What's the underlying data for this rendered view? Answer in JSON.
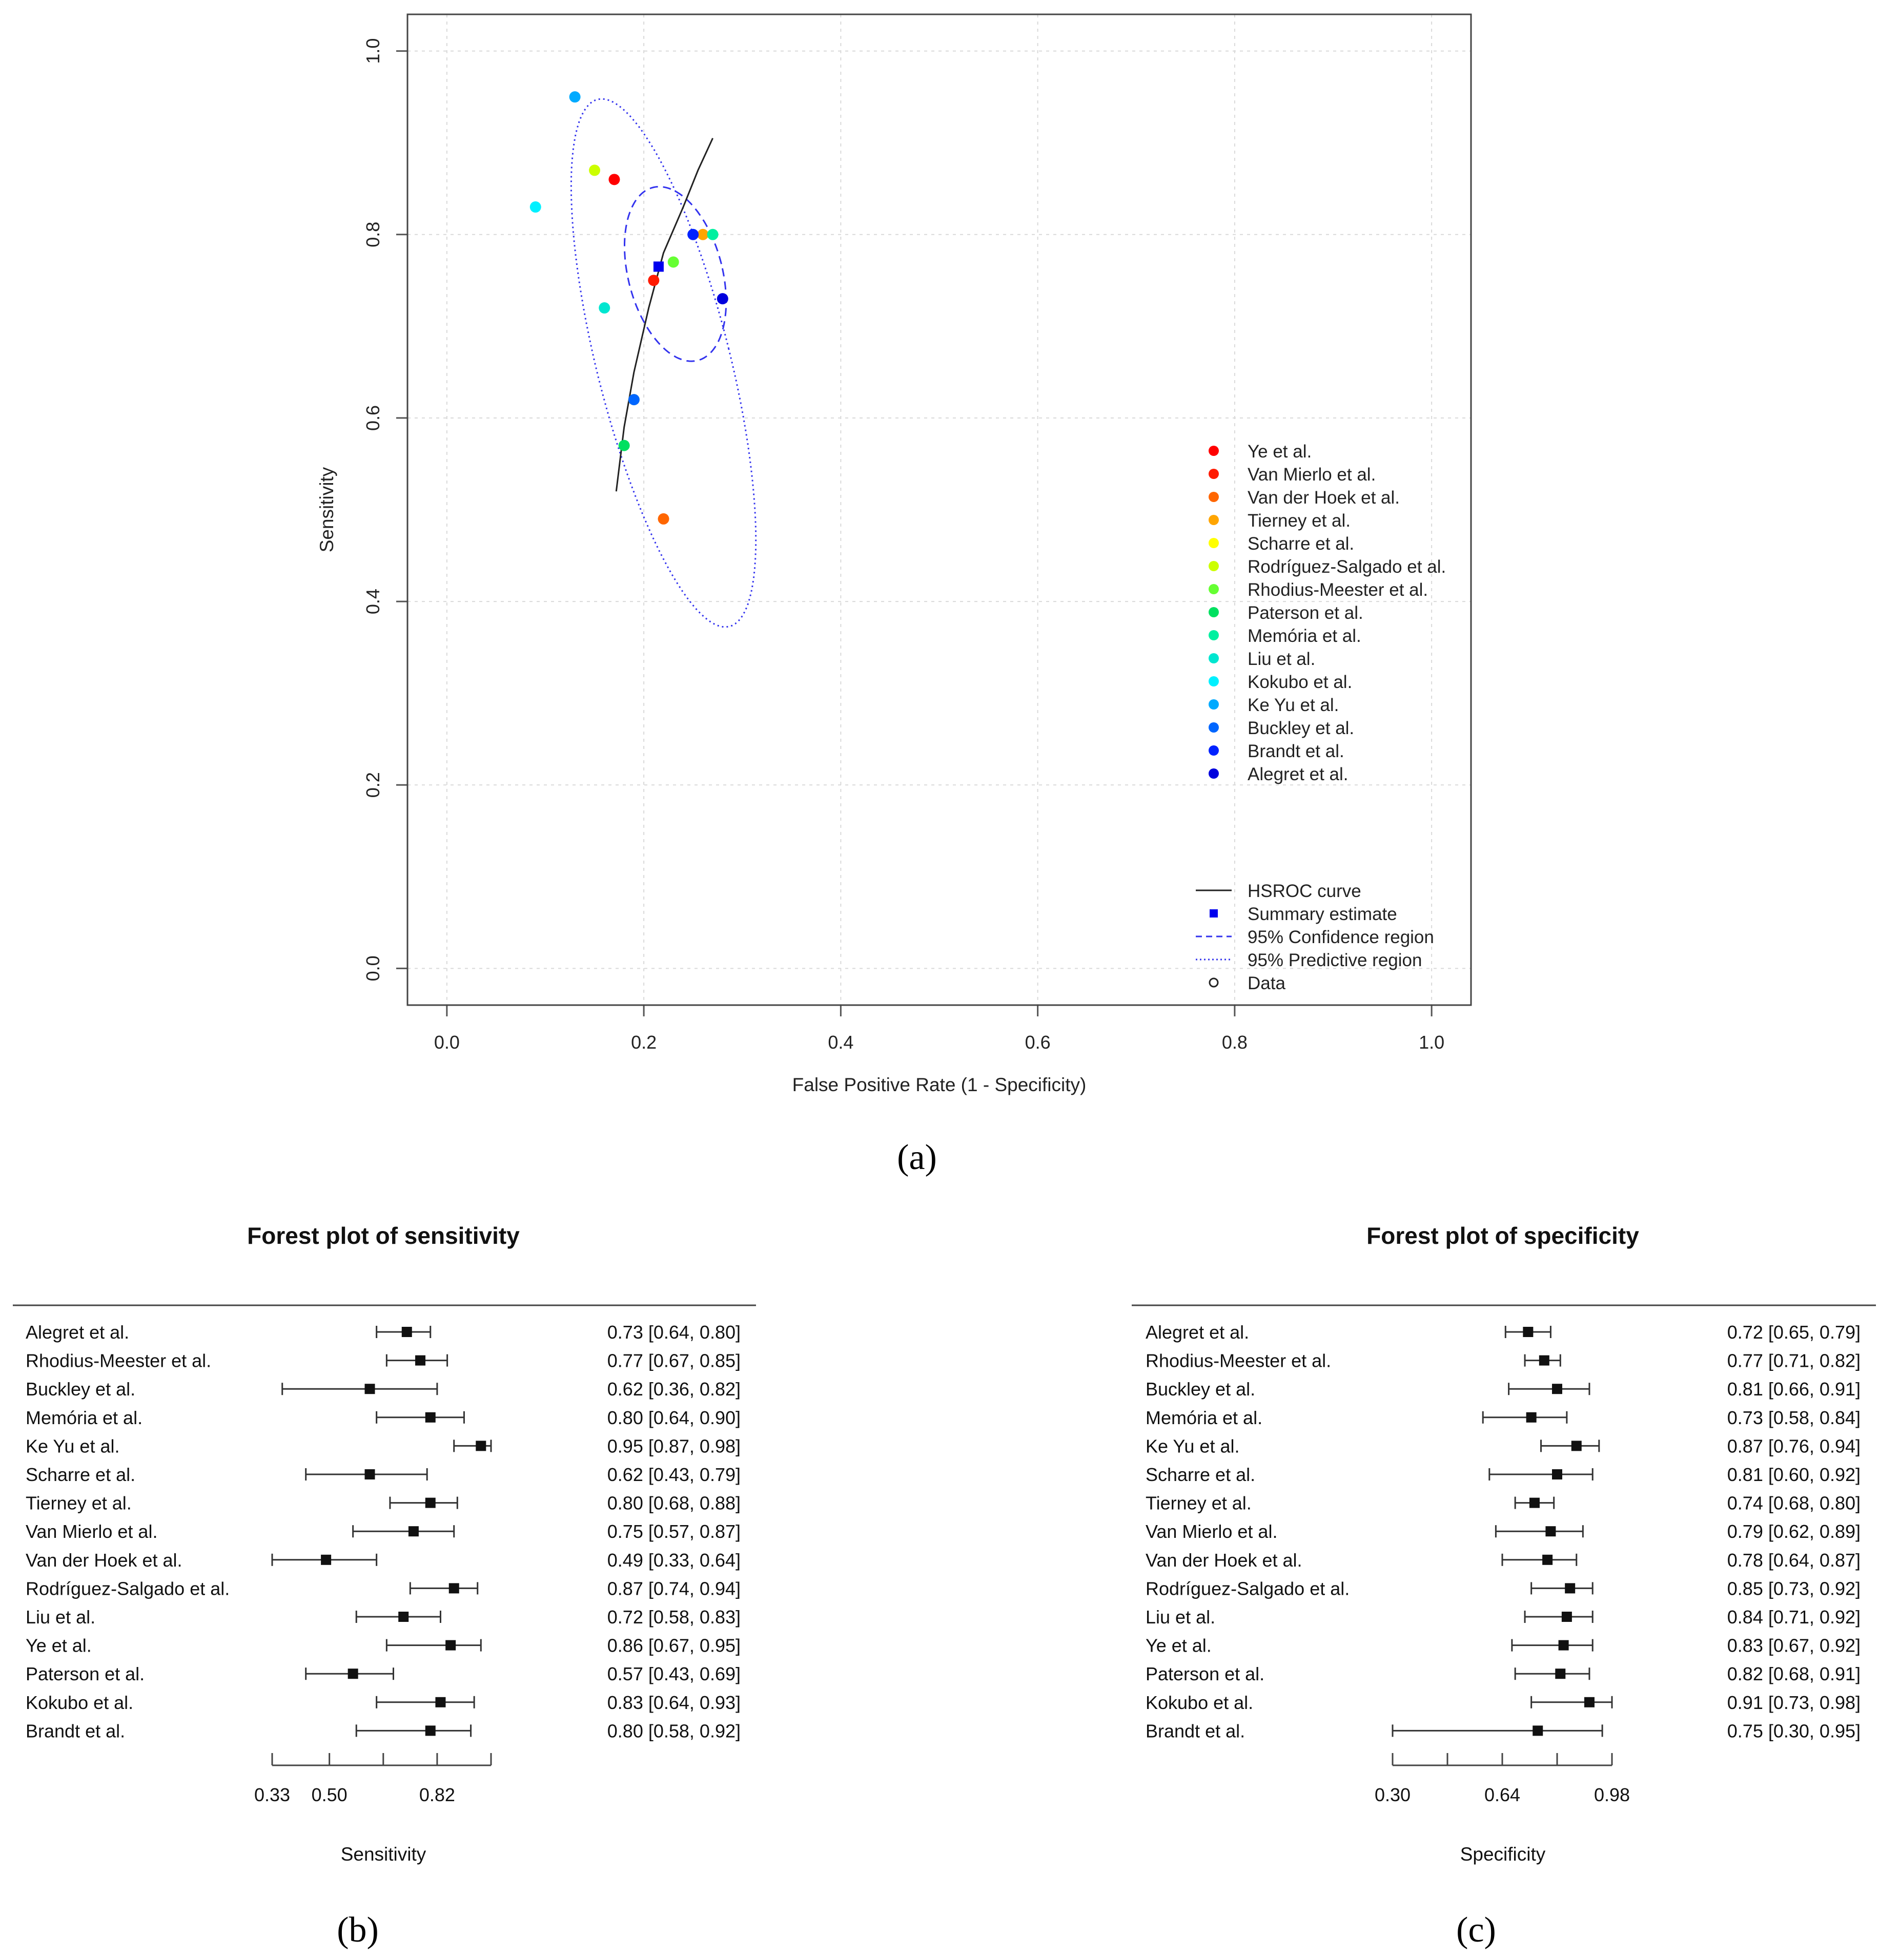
{
  "panel_labels": {
    "a": "(a)",
    "b": "(b)",
    "c": "(c)"
  },
  "chart_data": [
    {
      "type": "scatter",
      "id": "a",
      "title": "",
      "xlabel": "False Positive Rate (1 - Specificity)",
      "ylabel": "Sensitivity",
      "xlim": [
        -0.04,
        1.04
      ],
      "ylim": [
        -0.04,
        1.04
      ],
      "xticks": [
        0.0,
        0.2,
        0.4,
        0.6,
        0.8,
        1.0
      ],
      "yticks": [
        0.0,
        0.2,
        0.4,
        0.6,
        0.8,
        1.0
      ],
      "tick_labels": [
        "0.0",
        "0.2",
        "0.4",
        "0.6",
        "0.8",
        "1.0"
      ],
      "grid": true,
      "legend_position": "right",
      "studies": [
        {
          "name": "Ye et al.",
          "color": "#ff0000",
          "fpr": 0.17,
          "sens": 0.86
        },
        {
          "name": "Van Mierlo et al.",
          "color": "#ff1a00",
          "fpr": 0.21,
          "sens": 0.75
        },
        {
          "name": "Van der Hoek et al.",
          "color": "#ff6600",
          "fpr": 0.22,
          "sens": 0.49
        },
        {
          "name": "Tierney et al.",
          "color": "#ffa500",
          "fpr": 0.26,
          "sens": 0.8
        },
        {
          "name": "Scharre et al.",
          "color": "#ffff00",
          "fpr": 0.19,
          "sens": 0.62
        },
        {
          "name": "Rodríguez-Salgado et al.",
          "color": "#ccff00",
          "fpr": 0.15,
          "sens": 0.87
        },
        {
          "name": "Rhodius-Meester et al.",
          "color": "#66ff33",
          "fpr": 0.23,
          "sens": 0.77
        },
        {
          "name": "Paterson et al.",
          "color": "#00e060",
          "fpr": 0.18,
          "sens": 0.57
        },
        {
          "name": "Memória et al.",
          "color": "#00f0a0",
          "fpr": 0.27,
          "sens": 0.8
        },
        {
          "name": "Liu et al.",
          "color": "#00e6d0",
          "fpr": 0.16,
          "sens": 0.72
        },
        {
          "name": "Kokubo et al.",
          "color": "#00f0ff",
          "fpr": 0.09,
          "sens": 0.83
        },
        {
          "name": "Ke Yu et al.",
          "color": "#00aaff",
          "fpr": 0.13,
          "sens": 0.95
        },
        {
          "name": "Buckley et al.",
          "color": "#0066ff",
          "fpr": 0.19,
          "sens": 0.62
        },
        {
          "name": "Brandt et al.",
          "color": "#0022ff",
          "fpr": 0.25,
          "sens": 0.8
        },
        {
          "name": "Alegret et al.",
          "color": "#0000dd",
          "fpr": 0.28,
          "sens": 0.73
        }
      ],
      "summary_estimate": {
        "fpr": 0.215,
        "sens": 0.765
      },
      "hsroc_curve": [
        [
          0.172,
          0.52
        ],
        [
          0.18,
          0.59
        ],
        [
          0.19,
          0.65
        ],
        [
          0.205,
          0.72
        ],
        [
          0.22,
          0.78
        ],
        [
          0.24,
          0.83
        ],
        [
          0.255,
          0.87
        ],
        [
          0.27,
          0.905
        ]
      ],
      "confidence_region": {
        "cx": 0.232,
        "cy": 0.757,
        "a": 0.048,
        "b": 0.097,
        "rot_deg": 13
      },
      "predictive_region": {
        "cx": 0.22,
        "cy": 0.66,
        "a": 0.068,
        "b": 0.295,
        "rot_deg": 13
      },
      "legend_items": [
        "HSROC curve",
        "Summary estimate",
        "95% Confidence region",
        "95% Predictive region",
        "Data"
      ]
    },
    {
      "type": "forest",
      "id": "b",
      "title": "Forest plot of sensitivity",
      "xlabel": "Sensitivity",
      "axis": {
        "min": 0.33,
        "max": 0.98,
        "ticks": [
          0.33,
          0.5,
          0.82
        ],
        "minor_ticks": [
          0.66,
          0.98
        ]
      },
      "studies": [
        {
          "name": "Alegret et al.",
          "est": 0.73,
          "lo": 0.64,
          "hi": 0.8,
          "label": "0.73 [0.64, 0.80]"
        },
        {
          "name": "Rhodius-Meester et al.",
          "est": 0.77,
          "lo": 0.67,
          "hi": 0.85,
          "label": "0.77 [0.67, 0.85]"
        },
        {
          "name": "Buckley et al.",
          "est": 0.62,
          "lo": 0.36,
          "hi": 0.82,
          "label": "0.62 [0.36, 0.82]"
        },
        {
          "name": "Memória et al.",
          "est": 0.8,
          "lo": 0.64,
          "hi": 0.9,
          "label": "0.80 [0.64, 0.90]"
        },
        {
          "name": "Ke Yu et al.",
          "est": 0.95,
          "lo": 0.87,
          "hi": 0.98,
          "label": "0.95 [0.87, 0.98]"
        },
        {
          "name": "Scharre et al.",
          "est": 0.62,
          "lo": 0.43,
          "hi": 0.79,
          "label": "0.62 [0.43, 0.79]"
        },
        {
          "name": "Tierney et al.",
          "est": 0.8,
          "lo": 0.68,
          "hi": 0.88,
          "label": "0.80 [0.68, 0.88]"
        },
        {
          "name": "Van Mierlo et al.",
          "est": 0.75,
          "lo": 0.57,
          "hi": 0.87,
          "label": "0.75 [0.57, 0.87]"
        },
        {
          "name": "Van der Hoek et al.",
          "est": 0.49,
          "lo": 0.33,
          "hi": 0.64,
          "label": "0.49 [0.33, 0.64]"
        },
        {
          "name": "Rodríguez-Salgado et al.",
          "est": 0.87,
          "lo": 0.74,
          "hi": 0.94,
          "label": "0.87 [0.74, 0.94]"
        },
        {
          "name": "Liu et al.",
          "est": 0.72,
          "lo": 0.58,
          "hi": 0.83,
          "label": "0.72 [0.58, 0.83]"
        },
        {
          "name": "Ye et al.",
          "est": 0.86,
          "lo": 0.67,
          "hi": 0.95,
          "label": "0.86 [0.67, 0.95]"
        },
        {
          "name": "Paterson et al.",
          "est": 0.57,
          "lo": 0.43,
          "hi": 0.69,
          "label": "0.57 [0.43, 0.69]"
        },
        {
          "name": "Kokubo et al.",
          "est": 0.83,
          "lo": 0.64,
          "hi": 0.93,
          "label": "0.83 [0.64, 0.93]"
        },
        {
          "name": "Brandt et al.",
          "est": 0.8,
          "lo": 0.58,
          "hi": 0.92,
          "label": "0.80 [0.58, 0.92]"
        }
      ]
    },
    {
      "type": "forest",
      "id": "c",
      "title": "Forest plot of specificity",
      "xlabel": "Specificity",
      "axis": {
        "min": 0.3,
        "max": 0.98,
        "ticks": [
          0.3,
          0.64,
          0.98
        ],
        "minor_ticks": [
          0.47,
          0.81
        ]
      },
      "studies": [
        {
          "name": "Alegret et al.",
          "est": 0.72,
          "lo": 0.65,
          "hi": 0.79,
          "label": "0.72 [0.65, 0.79]"
        },
        {
          "name": "Rhodius-Meester et al.",
          "est": 0.77,
          "lo": 0.71,
          "hi": 0.82,
          "label": "0.77 [0.71, 0.82]"
        },
        {
          "name": "Buckley et al.",
          "est": 0.81,
          "lo": 0.66,
          "hi": 0.91,
          "label": "0.81 [0.66, 0.91]"
        },
        {
          "name": "Memória et al.",
          "est": 0.73,
          "lo": 0.58,
          "hi": 0.84,
          "label": "0.73 [0.58, 0.84]"
        },
        {
          "name": "Ke Yu et al.",
          "est": 0.87,
          "lo": 0.76,
          "hi": 0.94,
          "label": "0.87 [0.76, 0.94]"
        },
        {
          "name": "Scharre et al.",
          "est": 0.81,
          "lo": 0.6,
          "hi": 0.92,
          "label": "0.81 [0.60, 0.92]"
        },
        {
          "name": "Tierney et al.",
          "est": 0.74,
          "lo": 0.68,
          "hi": 0.8,
          "label": "0.74 [0.68, 0.80]"
        },
        {
          "name": "Van Mierlo et al.",
          "est": 0.79,
          "lo": 0.62,
          "hi": 0.89,
          "label": "0.79 [0.62, 0.89]"
        },
        {
          "name": "Van der Hoek et al.",
          "est": 0.78,
          "lo": 0.64,
          "hi": 0.87,
          "label": "0.78 [0.64, 0.87]"
        },
        {
          "name": "Rodríguez-Salgado et al.",
          "est": 0.85,
          "lo": 0.73,
          "hi": 0.92,
          "label": "0.85 [0.73, 0.92]"
        },
        {
          "name": "Liu et al.",
          "est": 0.84,
          "lo": 0.71,
          "hi": 0.92,
          "label": "0.84 [0.71, 0.92]"
        },
        {
          "name": "Ye et al.",
          "est": 0.83,
          "lo": 0.67,
          "hi": 0.92,
          "label": "0.83 [0.67, 0.92]"
        },
        {
          "name": "Paterson et al.",
          "est": 0.82,
          "lo": 0.68,
          "hi": 0.91,
          "label": "0.82 [0.68, 0.91]"
        },
        {
          "name": "Kokubo et al.",
          "est": 0.91,
          "lo": 0.73,
          "hi": 0.98,
          "label": "0.91 [0.73, 0.98]"
        },
        {
          "name": "Brandt et al.",
          "est": 0.75,
          "lo": 0.3,
          "hi": 0.95,
          "label": "0.75 [0.30, 0.95]"
        }
      ]
    }
  ]
}
